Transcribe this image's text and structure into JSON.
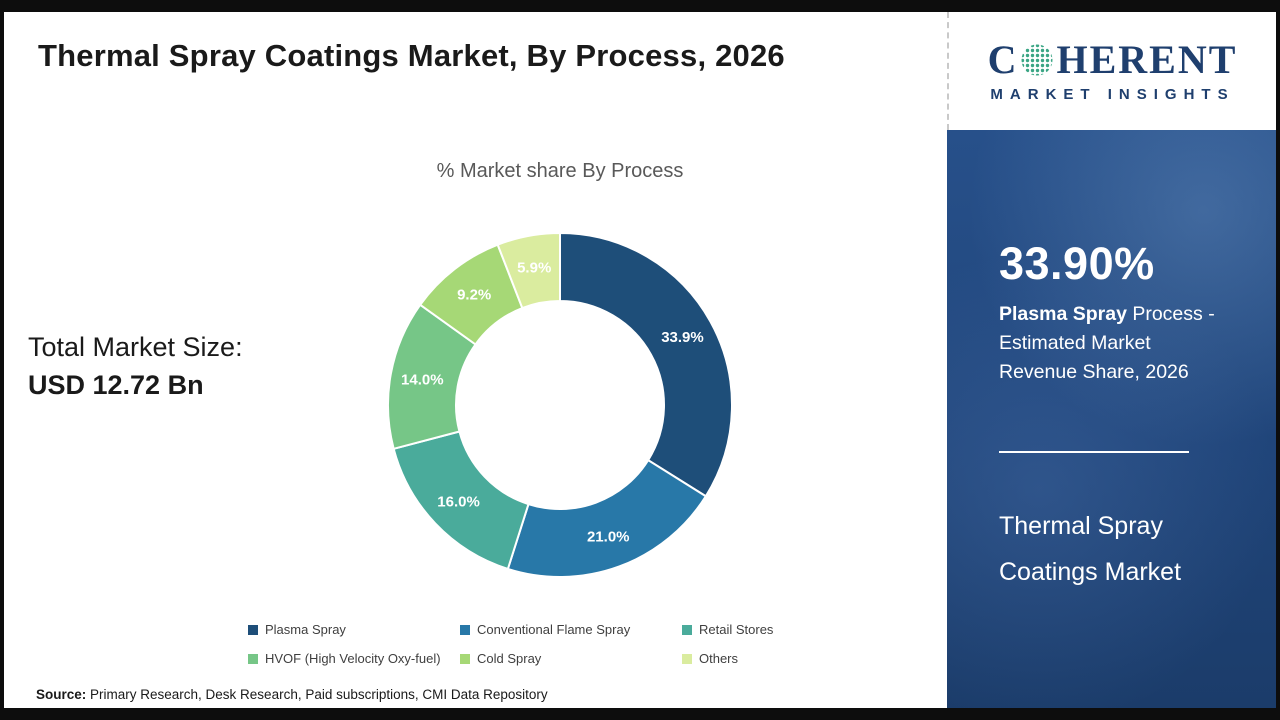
{
  "header": {
    "title": "Thermal Spray Coatings Market, By Process, 2026"
  },
  "logo": {
    "brand_start": "C",
    "brand_end": "HERENT",
    "subtitle": "MARKET INSIGHTS",
    "brand_color": "#1f3f6e",
    "globe_icon": "dotted-globe"
  },
  "left_panel": {
    "total_label": "Total Market Size:",
    "total_value": "USD 12.72 Bn"
  },
  "chart_data": {
    "type": "pie",
    "donut": true,
    "title": "% Market share By Process",
    "categories": [
      "Plasma Spray",
      "Conventional Flame Spray",
      "Retail Stores",
      "HVOF (High Velocity Oxy-fuel)",
      "Cold Spray",
      "Others"
    ],
    "values": [
      33.9,
      21.0,
      16.0,
      14.0,
      9.2,
      5.9
    ],
    "labels": [
      "33.9%",
      "21.0%",
      "16.0%",
      "14.0%",
      "9.2%",
      "5.9%"
    ],
    "colors": [
      "#1e4e79",
      "#2878a8",
      "#4aab9b",
      "#76c687",
      "#a6d876",
      "#daec9f"
    ],
    "start_angle_deg": 0,
    "direction": "clockwise",
    "legend_position": "bottom",
    "label_color": "#ffffff"
  },
  "sidebar": {
    "stat_value": "33.90%",
    "stat_bold": "Plasma Spray",
    "stat_rest": " Process - Estimated Market Revenue Share, 2026",
    "product_name": "Thermal Spray Coatings Market",
    "panel_color": "#21477a"
  },
  "footer": {
    "source_label": "Source:",
    "source_text": " Primary Research, Desk Research, Paid subscriptions, CMI Data Repository"
  }
}
